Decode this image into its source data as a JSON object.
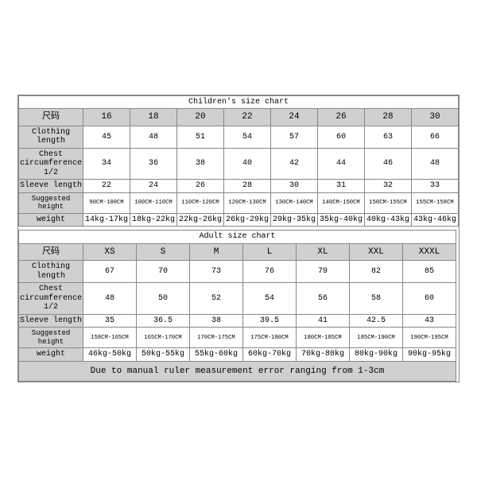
{
  "colors": {
    "background": "#ffffff",
    "header_bg": "#d0d0d0",
    "border": "#888888",
    "text": "#000000"
  },
  "typography": {
    "font_family": "Courier New, monospace",
    "title_fontsize": 14,
    "header_fontsize": 11,
    "cell_fontsize": 10,
    "note_fontsize": 11
  },
  "children_chart": {
    "title": "Children's size chart",
    "size_label": "尺码",
    "col_width_first": 68,
    "col_width_rest": 59,
    "sizes": [
      "16",
      "18",
      "20",
      "22",
      "24",
      "26",
      "28",
      "30"
    ],
    "rows": [
      {
        "label": "Clothing length",
        "values": [
          "45",
          "48",
          "51",
          "54",
          "57",
          "60",
          "63",
          "66"
        ]
      },
      {
        "label": "Chest circumference 1/2",
        "values": [
          "34",
          "36",
          "38",
          "40",
          "42",
          "44",
          "46",
          "48"
        ]
      },
      {
        "label": "Sleeve length",
        "values": [
          "22",
          "24",
          "26",
          "28",
          "30",
          "31",
          "32",
          "33"
        ]
      },
      {
        "label": "Suggested height",
        "values": [
          "90CM-100CM",
          "100CM-110CM",
          "110CM-120CM",
          "120CM-130CM",
          "130CM-140CM",
          "140CM-150CM",
          "150CM-155CM",
          "155CM-158CM"
        ],
        "small": true
      },
      {
        "label": "weight",
        "values": [
          "14kg-17kg",
          "18kg-22kg",
          "22kg-26kg",
          "26kg-29kg",
          "29kg-35kg",
          "35kg-40kg",
          "40kg-43kg",
          "43kg-46kg"
        ]
      }
    ]
  },
  "adult_chart": {
    "title": "Adult size chart",
    "size_label": "尺码",
    "col_width_first": 68,
    "col_width_rest": 67,
    "sizes": [
      "XS",
      "S",
      "M",
      "L",
      "XL",
      "XXL",
      "XXXL"
    ],
    "rows": [
      {
        "label": "Clothing length",
        "values": [
          "67",
          "70",
          "73",
          "76",
          "79",
          "82",
          "85"
        ]
      },
      {
        "label": "Chest circumference 1/2",
        "values": [
          "48",
          "50",
          "52",
          "54",
          "56",
          "58",
          "60"
        ]
      },
      {
        "label": "Sleeve length",
        "values": [
          "35",
          "36.5",
          "38",
          "39.5",
          "41",
          "42.5",
          "43"
        ]
      },
      {
        "label": "Suggested height",
        "values": [
          "158CM-165CM",
          "165CM-170CM",
          "170CM-175CM",
          "175CM-180CM",
          "180CM-185CM",
          "185CM-190CM",
          "190CM-195CM"
        ],
        "small": true
      },
      {
        "label": "weight",
        "values": [
          "46kg-50kg",
          "50kg-55kg",
          "55kg-60kg",
          "60kg-70kg",
          "70kg-80kg",
          "80kg-90kg",
          "90kg-95kg"
        ]
      }
    ],
    "note": "Due to manual ruler measurement error ranging from 1-3cm"
  }
}
